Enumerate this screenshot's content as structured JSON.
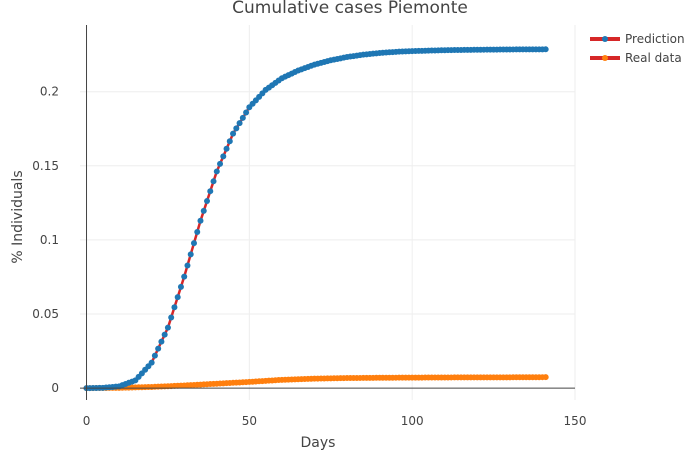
{
  "chart_data": {
    "type": "line",
    "title": "Cumulative cases Piemonte",
    "xlabel": "Days",
    "ylabel": "% Individuals",
    "xlim": [
      -2,
      150
    ],
    "ylim": [
      -0.008,
      0.245
    ],
    "x_ticks": [
      0,
      50,
      100,
      150
    ],
    "x_tick_labels": [
      "0",
      "50",
      "100",
      "150"
    ],
    "y_ticks": [
      0,
      0.05,
      0.1,
      0.15,
      0.2
    ],
    "y_tick_labels": [
      "0",
      "0.05",
      "0.1",
      "0.15",
      "0.2"
    ],
    "grid": true,
    "legend_position": "top-right",
    "series": [
      {
        "name": "Prediction",
        "color": "#1f77b4",
        "highlight_color": "#d62728",
        "x": [
          0,
          5,
          10,
          15,
          20,
          25,
          30,
          35,
          40,
          45,
          50,
          55,
          60,
          65,
          70,
          75,
          80,
          85,
          90,
          95,
          100,
          110,
          120,
          130,
          141
        ],
        "y": [
          0,
          0.0002,
          0.0012,
          0.0052,
          0.0172,
          0.0408,
          0.0752,
          0.1129,
          0.1462,
          0.1717,
          0.1895,
          0.2012,
          0.2091,
          0.2143,
          0.2183,
          0.2212,
          0.2234,
          0.225,
          0.2261,
          0.2269,
          0.2274,
          0.228,
          0.2283,
          0.2285,
          0.2286
        ]
      },
      {
        "name": "Real data",
        "color": "#ff7f0e",
        "highlight_color": "#d62728",
        "x": [
          0,
          10,
          20,
          30,
          40,
          50,
          60,
          70,
          80,
          90,
          100,
          110,
          120,
          130,
          141
        ],
        "y": [
          0,
          0.0002,
          0.0008,
          0.0018,
          0.003,
          0.0042,
          0.0056,
          0.0064,
          0.0068,
          0.007,
          0.0071,
          0.0072,
          0.0073,
          0.0073,
          0.0074
        ]
      }
    ]
  }
}
